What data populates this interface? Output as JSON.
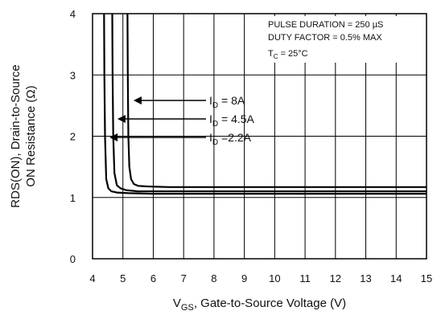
{
  "chart_data": {
    "type": "line",
    "xlabel_main": "V",
    "xlabel_sub": "GS",
    "xlabel_rest": ", Gate-to-Source Voltage (V)",
    "ylabel_line1": "RDS(ON), Drain-to-Source",
    "ylabel_line2": "ON Resistance (Ω)",
    "xlim": [
      4,
      15
    ],
    "ylim": [
      0,
      4
    ],
    "x_ticks": [
      "4",
      "5",
      "6",
      "7",
      "8",
      "9",
      "10",
      "11",
      "12",
      "13",
      "14",
      "15"
    ],
    "y_ticks": [
      "0",
      "1",
      "2",
      "3",
      "4"
    ],
    "grid": true,
    "notes": {
      "line1": "PULSE DURATION = 250 µS",
      "line2": "DUTY FACTOR = 0.5% MAX",
      "line3_main": "T",
      "line3_sub": "C",
      "line3_rest": " = 25°C"
    },
    "series": [
      {
        "name_main": "I",
        "name_sub": "D",
        "name_rest": " = 8A",
        "arrow_at": [
          5.35,
          2.62
        ],
        "x": [
          5.15,
          5.16,
          5.18,
          5.21,
          5.27,
          5.36,
          5.5,
          5.8,
          6.5,
          8,
          10,
          12,
          15
        ],
        "y": [
          4.0,
          3.0,
          2.0,
          1.5,
          1.3,
          1.22,
          1.19,
          1.18,
          1.17,
          1.17,
          1.17,
          1.17,
          1.17
        ]
      },
      {
        "name_main": "I",
        "name_sub": "D",
        "name_rest": " = 4.5A",
        "arrow_at": [
          4.82,
          2.34
        ],
        "x": [
          4.65,
          4.66,
          4.68,
          4.72,
          4.8,
          4.92,
          5.1,
          5.5,
          6.5,
          8,
          10,
          12,
          15
        ],
        "y": [
          4.0,
          3.0,
          2.0,
          1.4,
          1.2,
          1.15,
          1.12,
          1.1,
          1.1,
          1.1,
          1.1,
          1.1,
          1.1
        ]
      },
      {
        "name_main": "I",
        "name_sub": "D",
        "name_rest": " =2.2A",
        "arrow_at": [
          4.56,
          2.08
        ],
        "x": [
          4.38,
          4.39,
          4.41,
          4.45,
          4.52,
          4.62,
          4.8,
          5.2,
          6,
          8,
          10,
          12,
          15
        ],
        "y": [
          4.0,
          3.0,
          2.0,
          1.3,
          1.15,
          1.1,
          1.08,
          1.07,
          1.06,
          1.06,
          1.06,
          1.06,
          1.06
        ]
      }
    ]
  }
}
